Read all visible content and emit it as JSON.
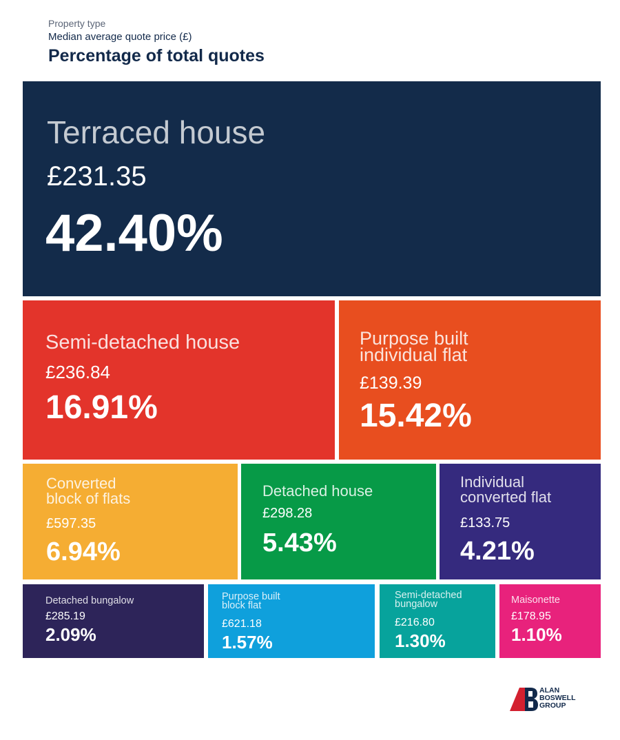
{
  "legend": {
    "line1": "Property type",
    "line2": "Median average quote price (£)",
    "line3": "Percentage of total quotes"
  },
  "chart_data": {
    "type": "treemap",
    "title": "",
    "items": [
      {
        "name": "Terraced house",
        "price": "£231.35",
        "percent": "42.40%",
        "value": 42.4,
        "color": "#132b4a"
      },
      {
        "name": "Semi-detached house",
        "price": "£236.84",
        "percent": "16.91%",
        "value": 16.91,
        "color": "#e3342b"
      },
      {
        "name": "Purpose built\nindividual flat",
        "price": "£139.39",
        "percent": "15.42%",
        "value": 15.42,
        "color": "#e84e1f"
      },
      {
        "name": "Converted\nblock of flats",
        "price": "£597.35",
        "percent": "6.94%",
        "value": 6.94,
        "color": "#f5ad33"
      },
      {
        "name": "Detached house",
        "price": "£298.28",
        "percent": "5.43%",
        "value": 5.43,
        "color": "#079a47"
      },
      {
        "name": "Individual\nconverted flat",
        "price": "£133.75",
        "percent": "4.21%",
        "value": 4.21,
        "color": "#352a7e"
      },
      {
        "name": "Detached bungalow",
        "price": "£285.19",
        "percent": "2.09%",
        "value": 2.09,
        "color": "#2d2459"
      },
      {
        "name": "Purpose built\nblock flat",
        "price": "£621.18",
        "percent": "1.57%",
        "value": 1.57,
        "color": "#0fa0dc"
      },
      {
        "name": "Semi-detached\nbungalow",
        "price": "£216.80",
        "percent": "1.30%",
        "value": 1.3,
        "color": "#07a39c"
      },
      {
        "name": "Maisonette",
        "price": "£178.95",
        "percent": "1.10%",
        "value": 1.1,
        "color": "#e8227c"
      }
    ]
  },
  "logo": {
    "line1": "ALAN",
    "line2": "BOSWELL",
    "line3": "GROUP",
    "colors": {
      "navy": "#12294a",
      "red": "#d3202f"
    }
  }
}
